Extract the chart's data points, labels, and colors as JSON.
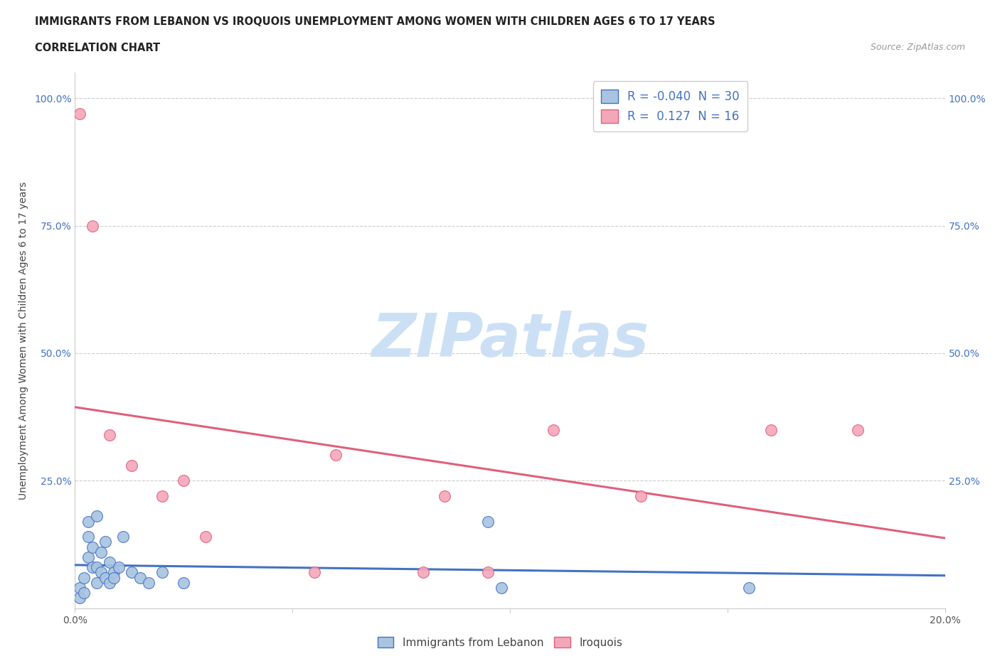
{
  "title1": "IMMIGRANTS FROM LEBANON VS IROQUOIS UNEMPLOYMENT AMONG WOMEN WITH CHILDREN AGES 6 TO 17 YEARS",
  "title2": "CORRELATION CHART",
  "source": "Source: ZipAtlas.com",
  "ylabel": "Unemployment Among Women with Children Ages 6 to 17 years",
  "xlim": [
    0.0,
    0.2
  ],
  "ylim": [
    0.0,
    1.05
  ],
  "r_blue": -0.04,
  "n_blue": 30,
  "r_pink": 0.127,
  "n_pink": 16,
  "blue_color": "#a8c4e0",
  "blue_line_color": "#4472c4",
  "pink_color": "#f4a7b9",
  "pink_line_color": "#e0607a",
  "grid_color": "#cccccc",
  "watermark": "ZIPatlas",
  "watermark_color": "#cce0f5",
  "blue_x": [
    0.001,
    0.001,
    0.002,
    0.002,
    0.003,
    0.003,
    0.003,
    0.004,
    0.004,
    0.005,
    0.005,
    0.005,
    0.006,
    0.006,
    0.007,
    0.007,
    0.008,
    0.008,
    0.009,
    0.009,
    0.01,
    0.011,
    0.013,
    0.015,
    0.017,
    0.02,
    0.025,
    0.095,
    0.098,
    0.155
  ],
  "blue_y": [
    0.02,
    0.04,
    0.06,
    0.03,
    0.1,
    0.14,
    0.17,
    0.08,
    0.12,
    0.05,
    0.08,
    0.18,
    0.07,
    0.11,
    0.06,
    0.13,
    0.05,
    0.09,
    0.07,
    0.06,
    0.08,
    0.14,
    0.07,
    0.06,
    0.05,
    0.07,
    0.05,
    0.17,
    0.04,
    0.04
  ],
  "pink_x": [
    0.001,
    0.004,
    0.008,
    0.013,
    0.02,
    0.025,
    0.03,
    0.055,
    0.06,
    0.08,
    0.085,
    0.095,
    0.11,
    0.13,
    0.16,
    0.18
  ],
  "pink_y": [
    0.97,
    0.75,
    0.34,
    0.28,
    0.22,
    0.25,
    0.14,
    0.07,
    0.3,
    0.07,
    0.22,
    0.07,
    0.35,
    0.22,
    0.35,
    0.35
  ]
}
